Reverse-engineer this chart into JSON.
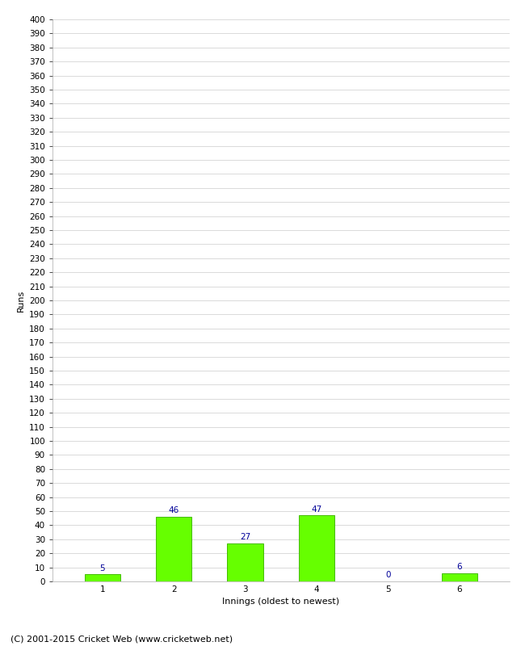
{
  "categories": [
    "1",
    "2",
    "3",
    "4",
    "5",
    "6"
  ],
  "values": [
    5,
    46,
    27,
    47,
    0,
    6
  ],
  "bar_color": "#66ff00",
  "bar_edge_color": "#44bb00",
  "value_color": "#000099",
  "xlabel": "Innings (oldest to newest)",
  "ylabel": "Runs",
  "ylim_min": 0,
  "ylim_max": 400,
  "ytick_step": 10,
  "background_color": "#ffffff",
  "grid_color": "#cccccc",
  "footer": "(C) 2001-2015 Cricket Web (www.cricketweb.net)",
  "axis_label_fontsize": 8,
  "tick_fontsize": 7.5,
  "value_fontsize": 7.5,
  "footer_fontsize": 8
}
